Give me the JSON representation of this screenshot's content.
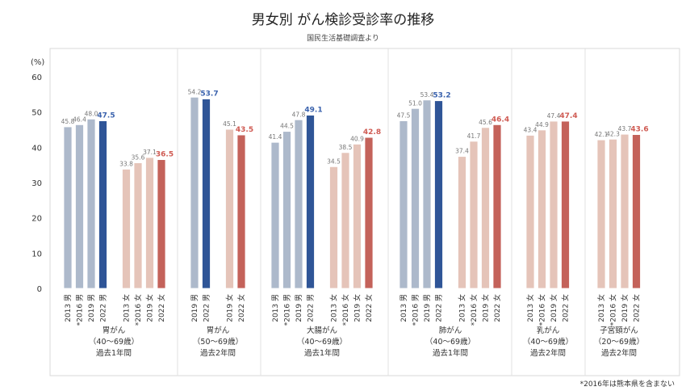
{
  "chart_data": {
    "type": "bar",
    "title": "男女別 がん検診受診率の推移",
    "subtitle": "国民生活基礎調査より",
    "ylabel": "(%)",
    "ylim": [
      0,
      60
    ],
    "yticks": [
      0,
      10,
      20,
      30,
      40,
      50,
      60
    ],
    "note": "*2016年は熊本県を含まない",
    "colors": {
      "male": "#adb9cb",
      "male_latest": "#2f5597",
      "female": "#e5c4b9",
      "female_latest": "#c4625a",
      "male_label": "#3a62ad",
      "female_label": "#cf5a52"
    },
    "groups": [
      {
        "label": [
          "胃がん",
          "（40～69歳）",
          "過去1年間"
        ],
        "bars": [
          {
            "x": "2013 男",
            "value": 45.8,
            "sex": "m"
          },
          {
            "x": "*2016 男",
            "value": 46.4,
            "sex": "m"
          },
          {
            "x": "2019 男",
            "value": 48.0,
            "sex": "m"
          },
          {
            "x": "2022 男",
            "value": 47.5,
            "sex": "m",
            "latest": true
          },
          {
            "x": "2013 女",
            "value": 33.8,
            "sex": "f"
          },
          {
            "x": "*2016 女",
            "value": 35.6,
            "sex": "f"
          },
          {
            "x": "2019 女",
            "value": 37.1,
            "sex": "f"
          },
          {
            "x": "2022 女",
            "value": 36.5,
            "sex": "f",
            "latest": true
          }
        ]
      },
      {
        "label": [
          "胃がん",
          "（50～69歳）",
          "過去2年間"
        ],
        "bars": [
          {
            "x": "2019 男",
            "value": 54.2,
            "sex": "m"
          },
          {
            "x": "2022 男",
            "value": 53.7,
            "sex": "m",
            "latest": true
          },
          {
            "x": "2019 女",
            "value": 45.1,
            "sex": "f"
          },
          {
            "x": "2022 女",
            "value": 43.5,
            "sex": "f",
            "latest": true
          }
        ]
      },
      {
        "label": [
          "大腸がん",
          "（40～69歳）",
          "過去1年間"
        ],
        "bars": [
          {
            "x": "2013 男",
            "value": 41.4,
            "sex": "m"
          },
          {
            "x": "*2016 男",
            "value": 44.5,
            "sex": "m"
          },
          {
            "x": "2019 男",
            "value": 47.8,
            "sex": "m"
          },
          {
            "x": "2022 男",
            "value": 49.1,
            "sex": "m",
            "latest": true
          },
          {
            "x": "2013 女",
            "value": 34.5,
            "sex": "f"
          },
          {
            "x": "*2016 女",
            "value": 38.5,
            "sex": "f"
          },
          {
            "x": "2019 女",
            "value": 40.9,
            "sex": "f"
          },
          {
            "x": "2022 女",
            "value": 42.8,
            "sex": "f",
            "latest": true
          }
        ]
      },
      {
        "label": [
          "肺がん",
          "（40～69歳）",
          "過去1年間"
        ],
        "bars": [
          {
            "x": "2013 男",
            "value": 47.5,
            "sex": "m"
          },
          {
            "x": "*2016 男",
            "value": 51.0,
            "sex": "m"
          },
          {
            "x": "2019 男",
            "value": 53.4,
            "sex": "m"
          },
          {
            "x": "2022 男",
            "value": 53.2,
            "sex": "m",
            "latest": true
          },
          {
            "x": "2013 女",
            "value": 37.4,
            "sex": "f"
          },
          {
            "x": "*2016 女",
            "value": 41.7,
            "sex": "f"
          },
          {
            "x": "2019 女",
            "value": 45.6,
            "sex": "f"
          },
          {
            "x": "2022 女",
            "value": 46.4,
            "sex": "f",
            "latest": true
          }
        ]
      },
      {
        "label": [
          "乳がん",
          "（40～69歳）",
          "過去2年間"
        ],
        "bars": [
          {
            "x": "2013 女",
            "value": 43.4,
            "sex": "f"
          },
          {
            "x": "*2016 女",
            "value": 44.9,
            "sex": "f"
          },
          {
            "x": "2019 女",
            "value": 47.4,
            "sex": "f"
          },
          {
            "x": "2022 女",
            "value": 47.4,
            "sex": "f",
            "latest": true
          }
        ]
      },
      {
        "label": [
          "子宮頸がん",
          "（20～69歳）",
          "過去2年間"
        ],
        "bars": [
          {
            "x": "2013 女",
            "value": 42.1,
            "sex": "f"
          },
          {
            "x": "*2016 女",
            "value": 42.3,
            "sex": "f"
          },
          {
            "x": "2019 女",
            "value": 43.7,
            "sex": "f"
          },
          {
            "x": "2022 女",
            "value": 43.6,
            "sex": "f",
            "latest": true
          }
        ]
      }
    ]
  }
}
